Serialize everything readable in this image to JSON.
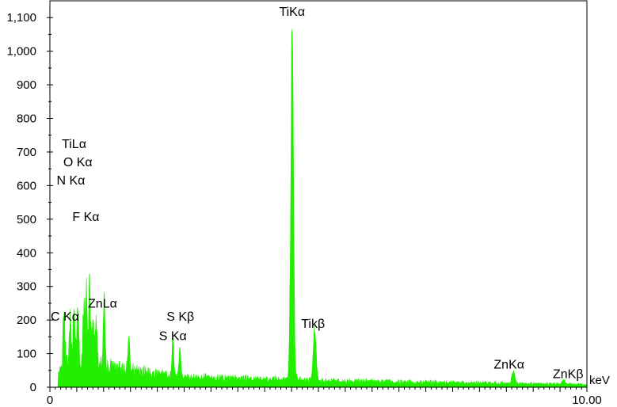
{
  "chart_data": {
    "type": "area",
    "title": "",
    "xlabel": "keV",
    "ylabel": "",
    "xlim": [
      0,
      10
    ],
    "ylim": [
      0,
      1150
    ],
    "color": "#22ee00",
    "y_ticks": [
      {
        "value": 0,
        "label": "0"
      },
      {
        "value": 100,
        "label": "100"
      },
      {
        "value": 200,
        "label": "200"
      },
      {
        "value": 300,
        "label": "300"
      },
      {
        "value": 400,
        "label": "400"
      },
      {
        "value": 500,
        "label": "500"
      },
      {
        "value": 600,
        "label": "600"
      },
      {
        "value": 700,
        "label": "700"
      },
      {
        "value": 800,
        "label": "800"
      },
      {
        "value": 900,
        "label": "900"
      },
      {
        "value": 1000,
        "label": "1,000"
      },
      {
        "value": 1100,
        "label": "1,100"
      }
    ],
    "x_tick_labels": [
      {
        "value": 0,
        "label": "0"
      },
      {
        "value": 10,
        "label": "10.00"
      }
    ],
    "peaks": [
      {
        "x": 0.26,
        "y": 172
      },
      {
        "x": 0.38,
        "y": 140
      },
      {
        "x": 0.45,
        "y": 160
      },
      {
        "x": 0.52,
        "y": 190
      },
      {
        "x": 0.63,
        "y": 180
      },
      {
        "x": 0.68,
        "y": 210
      },
      {
        "x": 0.74,
        "y": 240
      },
      {
        "x": 0.8,
        "y": 160
      },
      {
        "x": 0.86,
        "y": 140
      },
      {
        "x": 1.01,
        "y": 215
      },
      {
        "x": 1.47,
        "y": 105
      },
      {
        "x": 2.29,
        "y": 120
      },
      {
        "x": 2.42,
        "y": 90
      },
      {
        "x": 4.51,
        "y": 1005
      },
      {
        "x": 4.93,
        "y": 162
      },
      {
        "x": 8.63,
        "y": 38
      },
      {
        "x": 9.57,
        "y": 12
      }
    ],
    "annotations": [
      {
        "text": "TiKα",
        "x": 4.51,
        "y": 1105
      },
      {
        "text": "TiLα",
        "x": 0.45,
        "y": 712
      },
      {
        "text": "O Kα",
        "x": 0.52,
        "y": 658
      },
      {
        "text": "N Kα",
        "x": 0.39,
        "y": 603
      },
      {
        "text": "F Kα",
        "x": 0.67,
        "y": 495
      },
      {
        "text": "ZnLα",
        "x": 0.98,
        "y": 237
      },
      {
        "text": "C Kα",
        "x": 0.28,
        "y": 198
      },
      {
        "text": "S Kβ",
        "x": 2.43,
        "y": 198
      },
      {
        "text": "S Kα",
        "x": 2.29,
        "y": 140
      },
      {
        "text": "Tikβ",
        "x": 4.9,
        "y": 177
      },
      {
        "text": "ZnKα",
        "x": 8.55,
        "y": 55
      },
      {
        "text": "ZnKβ",
        "x": 9.65,
        "y": 27
      }
    ]
  }
}
